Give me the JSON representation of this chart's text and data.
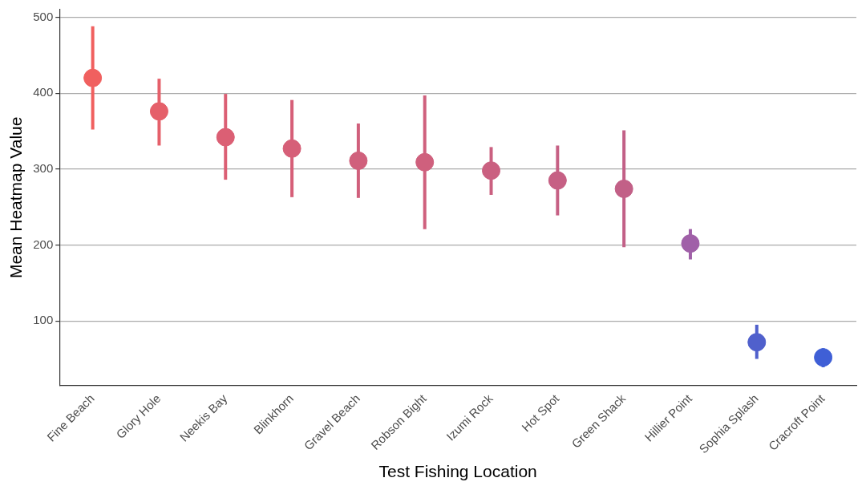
{
  "chart_data": {
    "type": "scatter",
    "xlabel": "Test Fishing Location",
    "ylabel": "Mean Heatmap Value",
    "categories": [
      "Fine Beach",
      "Glory Hole",
      "Neekis Bay",
      "Blinkhorn",
      "Gravel Beach",
      "Robson Bight",
      "Izumi Rock",
      "Hot Spot",
      "Green Shack",
      "Hillier Point",
      "Sophia Splash",
      "Cracroft Point"
    ],
    "values": [
      420,
      376,
      342,
      327,
      311,
      309,
      298,
      285,
      274,
      202,
      72,
      52
    ],
    "errors": [
      [
        352,
        488
      ],
      [
        331,
        419
      ],
      [
        286,
        399
      ],
      [
        263,
        391
      ],
      [
        262,
        360
      ],
      [
        221,
        397
      ],
      [
        266,
        329
      ],
      [
        239,
        331
      ],
      [
        197,
        351
      ],
      [
        181,
        221
      ],
      [
        50,
        95
      ],
      [
        39,
        64
      ]
    ],
    "colors": [
      "#f0605f",
      "#e5606a",
      "#db5f74",
      "#d65f78",
      "#d0607c",
      "#cf607d",
      "#ca6080",
      "#c66084",
      "#c26087",
      "#a060a8",
      "#5060cc",
      "#3f5fd6"
    ],
    "ylim": [
      15,
      510
    ],
    "yticks": [
      100,
      200,
      300,
      400,
      500
    ],
    "grid": "y",
    "marker": "circle"
  }
}
